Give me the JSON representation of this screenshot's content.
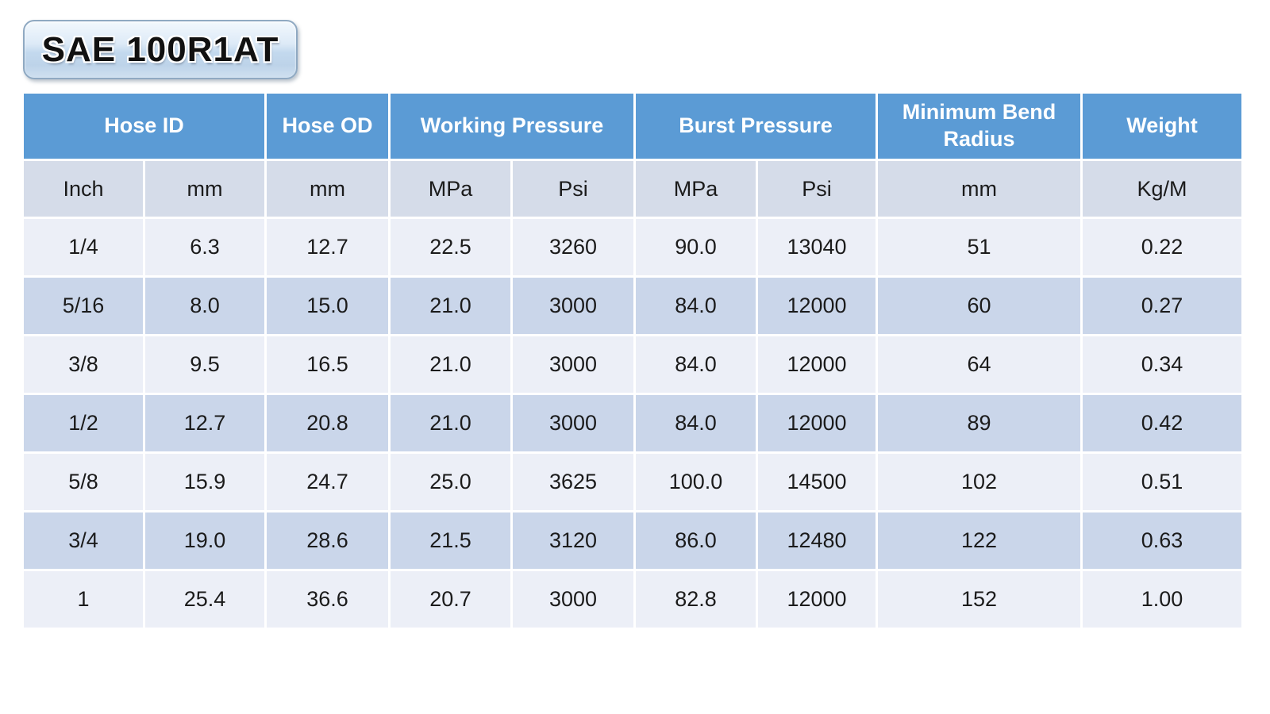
{
  "title": "SAE 100R1AT",
  "colors": {
    "header_blue": "#5b9bd5",
    "header_text": "#ffffff",
    "unit_row_bg": "#d5dce9",
    "row_light_bg": "#eceff7",
    "row_dark_bg": "#cad6ea",
    "body_text": "#1b1b1b",
    "page_bg": "#ffffff"
  },
  "table": {
    "groups": [
      {
        "label": "Hose ID",
        "span": 2
      },
      {
        "label": "Hose OD",
        "span": 1
      },
      {
        "label": "Working Pressure",
        "span": 2
      },
      {
        "label": "Burst Pressure",
        "span": 2
      },
      {
        "label": "Minimum Bend Radius",
        "span": 1
      },
      {
        "label": "Weight",
        "span": 1
      }
    ],
    "units": [
      "Inch",
      "mm",
      "mm",
      "MPa",
      "Psi",
      "MPa",
      "Psi",
      "mm",
      "Kg/M"
    ],
    "rows": [
      [
        "1/4",
        "6.3",
        "12.7",
        "22.5",
        "3260",
        "90.0",
        "13040",
        "51",
        "0.22"
      ],
      [
        "5/16",
        "8.0",
        "15.0",
        "21.0",
        "3000",
        "84.0",
        "12000",
        "60",
        "0.27"
      ],
      [
        "3/8",
        "9.5",
        "16.5",
        "21.0",
        "3000",
        "84.0",
        "12000",
        "64",
        "0.34"
      ],
      [
        "1/2",
        "12.7",
        "20.8",
        "21.0",
        "3000",
        "84.0",
        "12000",
        "89",
        "0.42"
      ],
      [
        "5/8",
        "15.9",
        "24.7",
        "25.0",
        "3625",
        "100.0",
        "14500",
        "102",
        "0.51"
      ],
      [
        "3/4",
        "19.0",
        "28.6",
        "21.5",
        "3120",
        "86.0",
        "12480",
        "122",
        "0.63"
      ],
      [
        "1",
        "25.4",
        "36.6",
        "20.7",
        "3000",
        "82.8",
        "12000",
        "152",
        "1.00"
      ]
    ]
  }
}
